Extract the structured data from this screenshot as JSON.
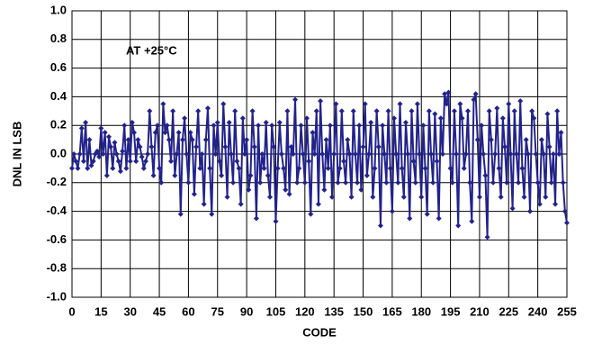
{
  "chart_data": {
    "type": "line",
    "annotation": "AT +25°C",
    "xlabel": "CODE",
    "ylabel": "DNL IN LSB",
    "xlim": [
      0,
      255
    ],
    "xticks": [
      0,
      15,
      30,
      45,
      60,
      75,
      90,
      105,
      120,
      135,
      150,
      165,
      180,
      195,
      210,
      225,
      240,
      255
    ],
    "ylim": [
      -1,
      1
    ],
    "yticks": [
      {
        "value": -1,
        "label": "-1.0"
      },
      -0.8,
      -0.6,
      -0.4,
      -0.2,
      {
        "value": 0,
        "label": "0.0"
      },
      0.2,
      0.4,
      0.6,
      0.8,
      {
        "value": 1,
        "label": "1.0"
      }
    ],
    "grid": true,
    "x": [
      0,
      1,
      2,
      3,
      4,
      5,
      6,
      7,
      8,
      9,
      10,
      11,
      12,
      13,
      14,
      15,
      16,
      17,
      18,
      19,
      20,
      21,
      22,
      23,
      24,
      25,
      26,
      27,
      28,
      29,
      30,
      31,
      32,
      33,
      34,
      35,
      36,
      37,
      38,
      39,
      40,
      41,
      42,
      43,
      44,
      45,
      46,
      47,
      48,
      49,
      50,
      51,
      52,
      53,
      54,
      55,
      56,
      57,
      58,
      59,
      60,
      61,
      62,
      63,
      64,
      65,
      66,
      67,
      68,
      69,
      70,
      71,
      72,
      73,
      74,
      75,
      76,
      77,
      78,
      79,
      80,
      81,
      82,
      83,
      84,
      85,
      86,
      87,
      88,
      89,
      90,
      91,
      92,
      93,
      94,
      95,
      96,
      97,
      98,
      99,
      100,
      101,
      102,
      103,
      104,
      105,
      106,
      107,
      108,
      109,
      110,
      111,
      112,
      113,
      114,
      115,
      116,
      117,
      118,
      119,
      120,
      121,
      122,
      123,
      124,
      125,
      126,
      127,
      128,
      129,
      130,
      131,
      132,
      133,
      134,
      135,
      136,
      137,
      138,
      139,
      140,
      141,
      142,
      143,
      144,
      145,
      146,
      147,
      148,
      149,
      150,
      151,
      152,
      153,
      154,
      155,
      156,
      157,
      158,
      159,
      160,
      161,
      162,
      163,
      164,
      165,
      166,
      167,
      168,
      169,
      170,
      171,
      172,
      173,
      174,
      175,
      176,
      177,
      178,
      179,
      180,
      181,
      182,
      183,
      184,
      185,
      186,
      187,
      188,
      189,
      190,
      191,
      192,
      193,
      194,
      195,
      196,
      197,
      198,
      199,
      200,
      201,
      202,
      203,
      204,
      205,
      206,
      207,
      208,
      209,
      210,
      211,
      212,
      213,
      214,
      215,
      216,
      217,
      218,
      219,
      220,
      221,
      222,
      223,
      224,
      225,
      226,
      227,
      228,
      229,
      230,
      231,
      232,
      233,
      234,
      235,
      236,
      237,
      238,
      239,
      240,
      241,
      242,
      243,
      244,
      245,
      246,
      247,
      248,
      249,
      250,
      251,
      252,
      253,
      254,
      255
    ],
    "series": [
      {
        "color": "#22228c",
        "values": [
          -0.1,
          0.0,
          -0.05,
          -0.1,
          0.0,
          0.18,
          -0.05,
          0.22,
          -0.1,
          0.1,
          -0.08,
          -0.05,
          0.0,
          0.02,
          -0.02,
          0.18,
          0.0,
          0.15,
          -0.15,
          0.12,
          0.05,
          -0.1,
          0.08,
          0.0,
          -0.05,
          -0.12,
          0.02,
          0.2,
          -0.1,
          0.1,
          -0.05,
          0.22,
          0.15,
          -0.05,
          0.1,
          0.05,
          -0.02,
          -0.1,
          -0.05,
          0.0,
          0.3,
          0.05,
          -0.15,
          0.15,
          0.2,
          -0.1,
          -0.2,
          0.35,
          0.15,
          0.2,
          0.1,
          -0.05,
          0.3,
          -0.15,
          0.0,
          0.15,
          -0.42,
          0.1,
          0.25,
          0.0,
          -0.2,
          0.15,
          0.1,
          -0.28,
          0.05,
          0.3,
          -0.1,
          0.0,
          -0.35,
          0.1,
          0.32,
          -0.1,
          -0.42,
          0.2,
          0.0,
          0.22,
          -0.05,
          -0.15,
          0.35,
          0.05,
          -0.3,
          0.22,
          0.0,
          -0.2,
          0.3,
          -0.05,
          -0.1,
          -0.35,
          0.25,
          0.0,
          0.1,
          -0.25,
          -0.15,
          0.3,
          0.05,
          -0.45,
          0.2,
          -0.2,
          0.0,
          -0.1,
          0.22,
          -0.15,
          -0.3,
          0.2,
          0.05,
          -0.47,
          -0.1,
          0.22,
          0.0,
          -0.1,
          -0.25,
          0.3,
          -0.28,
          0.05,
          0.0,
          0.38,
          -0.2,
          -0.1,
          0.2,
          0.0,
          -0.2,
          0.25,
          -0.05,
          -0.42,
          0.15,
          0.0,
          0.3,
          -0.35,
          0.37,
          0.0,
          -0.25,
          0.1,
          -0.1,
          0.2,
          -0.3,
          0.0,
          0.35,
          -0.2,
          -0.1,
          0.3,
          -0.05,
          -0.2,
          0.1,
          0.0,
          -0.3,
          0.3,
          0.0,
          -0.2,
          0.2,
          -0.25,
          0.05,
          0.35,
          -0.15,
          0.0,
          0.22,
          -0.3,
          -0.1,
          0.3,
          0.05,
          -0.5,
          0.2,
          0.0,
          -0.2,
          0.3,
          -0.1,
          -0.4,
          0.25,
          0.0,
          -0.2,
          0.35,
          -0.1,
          -0.3,
          0.22,
          0.0,
          -0.45,
          0.3,
          -0.05,
          -0.2,
          0.35,
          0.0,
          -0.3,
          0.2,
          -0.1,
          -0.42,
          0.3,
          0.0,
          -0.2,
          0.28,
          -0.05,
          -0.45,
          0.25,
          0.0,
          0.42,
          0.35,
          0.43,
          -0.1,
          -0.2,
          0.3,
          0.0,
          -0.5,
          0.35,
          0.25,
          -0.1,
          0.0,
          0.3,
          -0.2,
          -0.47,
          0.38,
          0.42,
          0.1,
          -0.3,
          0.2,
          0.0,
          -0.15,
          -0.58,
          0.3,
          0.1,
          -0.2,
          0.0,
          0.32,
          -0.1,
          -0.3,
          0.25,
          0.05,
          -0.2,
          0.35,
          0.0,
          -0.38,
          0.3,
          0.0,
          -0.2,
          0.37,
          -0.1,
          -0.3,
          0.1,
          0.0,
          -0.4,
          0.3,
          0.25,
          0.0,
          -0.2,
          -0.35,
          0.1,
          0.0,
          -0.3,
          0.28,
          0.05,
          -0.2,
          0.0,
          -0.35,
          0.3,
          0.0,
          0.15,
          -0.2,
          -0.4,
          -0.48
        ]
      }
    ]
  }
}
